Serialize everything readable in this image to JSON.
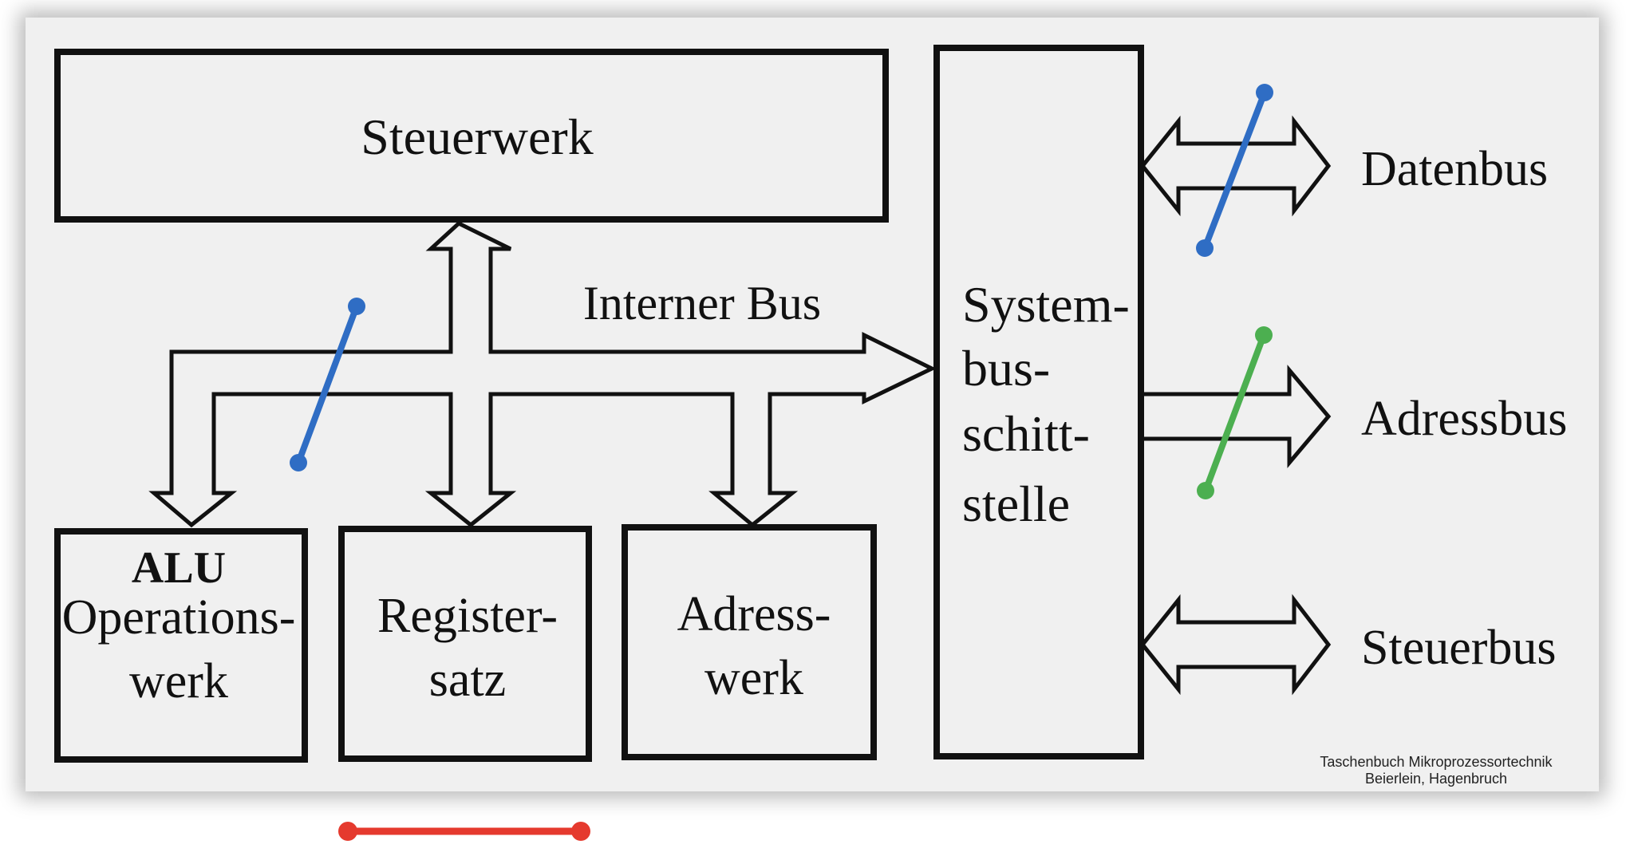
{
  "diagram": {
    "blocks": {
      "steuerwerk": "Steuerwerk",
      "alu_title": "ALU",
      "alu_line1": "Operations-",
      "alu_line2": "werk",
      "register_line1": "Register-",
      "register_line2": "satz",
      "adress_line1": "Adress-",
      "adress_line2": "werk",
      "system_line1": "System-",
      "system_line2": "bus-",
      "system_line3": "schitt-",
      "system_line4": "stelle"
    },
    "internal_bus_label": "Interner Bus",
    "external_buses": {
      "datenbus": "Datenbus",
      "adressbus": "Adressbus",
      "steuerbus": "Steuerbus"
    },
    "credit": {
      "line1": "Taschenbuch Mikroprozessortechnik",
      "line2": "Beierlein, Hagenbruch"
    }
  },
  "colors": {
    "stroke": "#111111",
    "annotation_blue": "#2f6dc4",
    "annotation_green": "#4caf50",
    "annotation_red": "#e53a2e"
  }
}
